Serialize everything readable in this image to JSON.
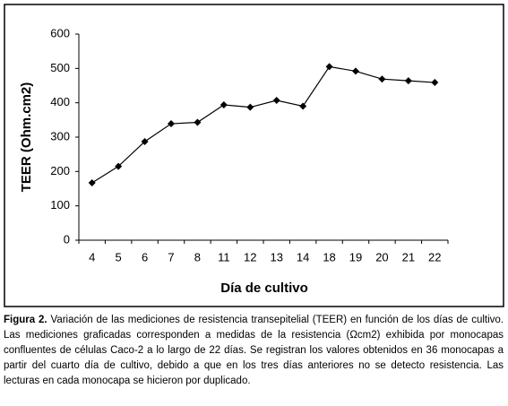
{
  "chart_data": {
    "type": "line",
    "y_label": "TEER (Ohm.cm2)",
    "x_label": "Día de cultivo",
    "categories": [
      "4",
      "5",
      "6",
      "7",
      "8",
      "11",
      "12",
      "13",
      "14",
      "18",
      "19",
      "20",
      "21",
      "22"
    ],
    "values": [
      167,
      215,
      287,
      339,
      343,
      394,
      387,
      407,
      390,
      505,
      492,
      469,
      464,
      459
    ],
    "color": "#000000",
    "ylim": [
      0,
      600
    ],
    "yticks": [
      0,
      100,
      200,
      300,
      400,
      500,
      600
    ]
  },
  "caption_label": "Figura 2.",
  "caption": "Variación de las mediciones de resistencia transepitelial (TEER) en función de los días de cultivo. Las mediciones graficadas corresponden a medidas de la resistencia (Ωcm2) exhibida por monocapas confluentes de células Caco-2 a lo largo de 22 días. Se registran los valores obtenidos en 36 monocapas a partir del cuarto día de cultivo, debido a que en los tres días anteriores no se detecto resistencia. Las lecturas en cada monocapa se hicieron por duplicado."
}
